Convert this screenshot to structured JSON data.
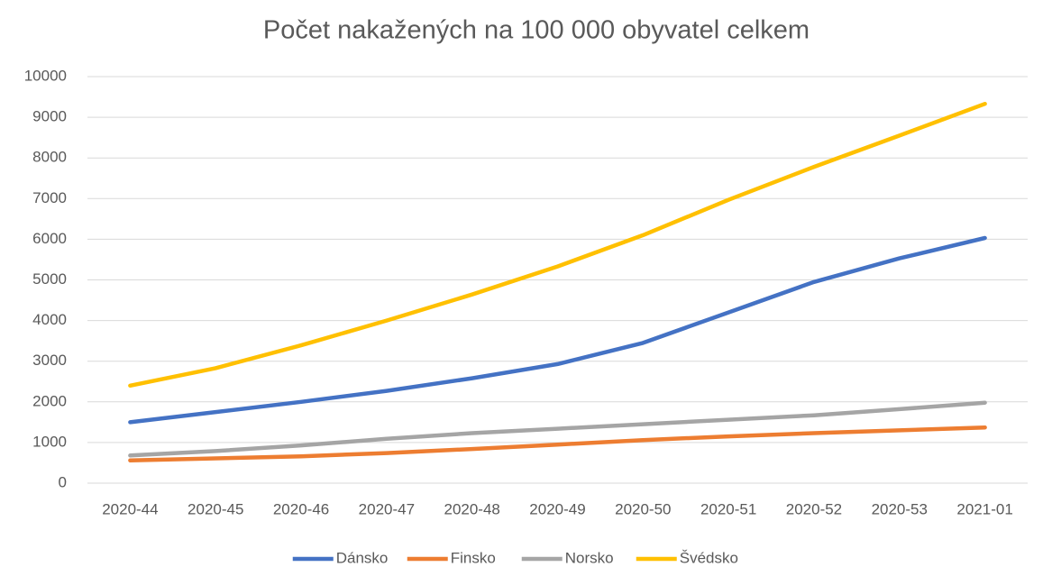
{
  "chart_data": {
    "type": "line",
    "title": "Počet nakažených na 100 000 obyvatel celkem",
    "categories": [
      "2020-44",
      "2020-45",
      "2020-46",
      "2020-47",
      "2020-48",
      "2020-49",
      "2020-50",
      "2020-51",
      "2020-52",
      "2020-53",
      "2021-01"
    ],
    "series": [
      {
        "name": "Dánsko",
        "color": "#4472c4",
        "values": [
          1500,
          1750,
          2000,
          2270,
          2580,
          2930,
          3450,
          4200,
          4950,
          5530,
          6030
        ]
      },
      {
        "name": "Finsko",
        "color": "#ed7d31",
        "values": [
          560,
          610,
          660,
          740,
          840,
          950,
          1060,
          1150,
          1230,
          1300,
          1370
        ]
      },
      {
        "name": "Norsko",
        "color": "#a5a5a5",
        "values": [
          680,
          790,
          930,
          1090,
          1230,
          1340,
          1450,
          1560,
          1670,
          1820,
          1980
        ]
      },
      {
        "name": "Švédsko",
        "color": "#ffc000",
        "values": [
          2400,
          2830,
          3390,
          4000,
          4640,
          5330,
          6100,
          6970,
          7780,
          8550,
          9330
        ]
      }
    ],
    "ylim": [
      0,
      10000
    ],
    "yticks": [
      0,
      1000,
      2000,
      3000,
      4000,
      5000,
      6000,
      7000,
      8000,
      9000,
      10000
    ],
    "grid": true,
    "legend": "bottom"
  }
}
